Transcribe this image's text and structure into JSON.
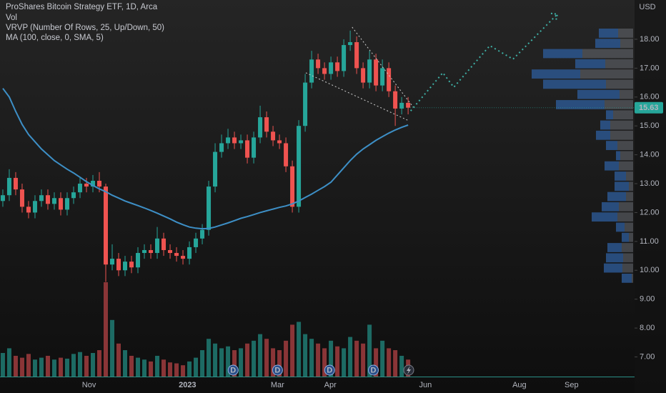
{
  "chart_data": {
    "type": "candlestick",
    "legend": [
      "ProShares Bitcoin Strategy ETF, 1D, Arca",
      "Vol",
      "VRVP (Number Of Rows, 25, Up/Down, 50)",
      "MA (100, close, 0, SMA, 5)"
    ],
    "currency": "USD",
    "up_color": "#26a69a",
    "down_color": "#ef5350",
    "volume_up_color": "#1d6b64",
    "volume_down_color": "#8a3537",
    "ma_color": "#3d8fc6",
    "forecast_color": "#3fb0a6",
    "grid": false,
    "xlim": [
      -0.44,
      98.2
    ],
    "ylim": [
      6.32,
      19.36
    ],
    "vlim": [
      0,
      100
    ],
    "xticks": [
      {
        "value": 13.4,
        "label": "Nov"
      },
      {
        "value": 28.7,
        "label": "2023"
      },
      {
        "value": 42.7,
        "label": "Mar"
      },
      {
        "value": 50.9,
        "label": "Apr"
      },
      {
        "value": 65.7,
        "label": "Jun"
      },
      {
        "value": 80.3,
        "label": "Aug"
      },
      {
        "value": 88.4,
        "label": "Sep"
      }
    ],
    "yticks": [
      {
        "value": 18,
        "label": "18.00"
      },
      {
        "value": 17,
        "label": "17.00"
      },
      {
        "value": 16,
        "label": "16.00"
      },
      {
        "value": 15,
        "label": "15.00"
      },
      {
        "value": 14,
        "label": "14.00"
      },
      {
        "value": 13,
        "label": "13.00"
      },
      {
        "value": 12,
        "label": "12.00"
      },
      {
        "value": 11,
        "label": "11.00"
      },
      {
        "value": 10,
        "label": "10.00"
      },
      {
        "value": 9,
        "label": "9.00"
      },
      {
        "value": 8,
        "label": "8.00"
      },
      {
        "value": 7,
        "label": "7.00"
      }
    ],
    "last_label": "15.63",
    "open": [
      12.4,
      12.6,
      13.2,
      12.8,
      12.2,
      12.0,
      12.4,
      12.6,
      12.3,
      12.5,
      12.1,
      12.5,
      12.7,
      13.0,
      12.9,
      13.1,
      12.9,
      10.2,
      10.4,
      10.0,
      10.3,
      10.1,
      10.6,
      10.7,
      10.6,
      11.1,
      10.7,
      10.6,
      10.5,
      10.4,
      10.8,
      11.1,
      11.4,
      12.9,
      14.1,
      14.4,
      14.6,
      14.4,
      14.5,
      13.9,
      14.6,
      15.3,
      14.8,
      14.5,
      14.4,
      13.6,
      12.2,
      15.0,
      16.5,
      17.3,
      17.0,
      16.8,
      17.2,
      16.9,
      17.8,
      17.9,
      17.0,
      16.5,
      17.3,
      16.4,
      17.0,
      16.2,
      15.6,
      15.8
    ],
    "high": [
      12.8,
      13.5,
      13.4,
      13.0,
      12.4,
      12.6,
      12.8,
      12.8,
      12.7,
      12.7,
      12.7,
      12.9,
      13.2,
      13.2,
      13.3,
      13.4,
      13.0,
      10.9,
      10.6,
      10.5,
      10.5,
      10.8,
      10.9,
      10.9,
      11.5,
      11.3,
      10.9,
      10.8,
      10.7,
      11.0,
      11.3,
      11.6,
      13.1,
      14.4,
      14.7,
      14.9,
      14.8,
      14.7,
      14.7,
      14.8,
      15.7,
      15.5,
      15.0,
      14.7,
      14.6,
      13.8,
      15.2,
      16.8,
      17.6,
      17.5,
      17.2,
      17.4,
      17.4,
      18.0,
      18.3,
      18.1,
      17.2,
      17.6,
      17.5,
      17.3,
      17.2,
      16.4,
      16.0,
      16.0
    ],
    "low": [
      12.2,
      12.4,
      12.6,
      12.0,
      11.8,
      11.8,
      12.2,
      12.1,
      12.1,
      11.9,
      11.9,
      12.3,
      12.5,
      12.7,
      12.7,
      12.7,
      9.6,
      10.0,
      9.8,
      9.8,
      9.9,
      9.9,
      10.4,
      10.4,
      10.4,
      10.5,
      10.4,
      10.3,
      10.2,
      10.2,
      10.6,
      10.9,
      11.2,
      12.7,
      13.9,
      14.2,
      14.2,
      14.2,
      13.7,
      13.7,
      14.4,
      14.6,
      14.3,
      14.2,
      13.4,
      12.0,
      12.0,
      14.8,
      16.3,
      16.8,
      16.6,
      16.6,
      16.7,
      16.7,
      17.6,
      16.8,
      16.3,
      16.3,
      16.2,
      16.2,
      16.0,
      15.0,
      15.4,
      15.4
    ],
    "close": [
      12.6,
      13.2,
      12.8,
      12.2,
      12.0,
      12.4,
      12.6,
      12.3,
      12.5,
      12.1,
      12.5,
      12.7,
      13.0,
      12.9,
      13.1,
      12.9,
      10.2,
      10.4,
      10.0,
      10.3,
      10.1,
      10.6,
      10.7,
      10.6,
      11.1,
      10.7,
      10.6,
      10.5,
      10.4,
      10.8,
      11.1,
      11.4,
      12.9,
      14.1,
      14.4,
      14.6,
      14.4,
      14.5,
      13.9,
      14.6,
      15.3,
      14.8,
      14.5,
      14.4,
      13.6,
      12.2,
      15.0,
      16.5,
      17.3,
      17.0,
      16.8,
      17.2,
      16.9,
      17.8,
      17.9,
      17.0,
      16.5,
      17.3,
      16.4,
      17.0,
      16.2,
      15.6,
      15.8,
      15.63
    ],
    "volume": [
      25,
      30,
      22,
      20,
      24,
      18,
      20,
      22,
      18,
      20,
      19,
      24,
      26,
      22,
      25,
      28,
      100,
      60,
      35,
      28,
      22,
      20,
      18,
      16,
      22,
      18,
      15,
      14,
      12,
      16,
      20,
      28,
      40,
      35,
      30,
      32,
      28,
      30,
      35,
      38,
      45,
      40,
      30,
      28,
      38,
      55,
      58,
      45,
      40,
      35,
      30,
      38,
      32,
      30,
      42,
      38,
      35,
      55,
      30,
      38,
      30,
      28,
      22,
      18
    ],
    "ma": [
      16.3,
      16.0,
      15.5,
      15.05,
      14.7,
      14.45,
      14.2,
      14.0,
      13.8,
      13.65,
      13.5,
      13.37,
      13.22,
      13.07,
      12.94,
      12.82,
      12.72,
      12.6,
      12.5,
      12.4,
      12.32,
      12.24,
      12.16,
      12.07,
      11.98,
      11.88,
      11.78,
      11.67,
      11.58,
      11.5,
      11.46,
      11.44,
      11.45,
      11.5,
      11.57,
      11.64,
      11.72,
      11.8,
      11.86,
      11.93,
      12.0,
      12.06,
      12.12,
      12.18,
      12.23,
      12.3,
      12.4,
      12.52,
      12.64,
      12.77,
      12.9,
      13.05,
      13.3,
      13.55,
      13.8,
      14.02,
      14.2,
      14.35,
      14.5,
      14.63,
      14.75,
      14.86,
      14.95,
      15.03
    ],
    "forecast": {
      "x": [
        63.4,
        68.4,
        70.1,
        75.7,
        79.3,
        86.2
      ],
      "values": [
        15.52,
        16.84,
        16.34,
        17.78,
        17.31,
        18.87
      ]
    },
    "trendlines": [
      {
        "x": [
          54.3,
          63.8
        ],
        "values": [
          18.42,
          15.65
        ]
      },
      {
        "x": [
          47.1,
          62.9
        ],
        "values": [
          16.84,
          15.2
        ]
      }
    ],
    "events": [
      {
        "x": 35.8,
        "label": "D"
      },
      {
        "x": 42.7,
        "label": "D"
      },
      {
        "x": 50.8,
        "label": "D"
      },
      {
        "x": 57.6,
        "label": "D"
      }
    ],
    "profile": {
      "top": 18.37,
      "bottom": 9.53,
      "lim": [
        0,
        150
      ],
      "up_color": "#2d5a96",
      "down_color": "#6a6d75",
      "up": [
        27,
        35,
        55,
        42,
        68,
        88,
        59,
        68,
        10,
        14,
        20,
        16,
        6,
        20,
        16,
        20,
        26,
        24,
        36,
        12,
        10,
        20,
        24,
        26,
        14
      ],
      "down": [
        21,
        18,
        71,
        39,
        74,
        38,
        19,
        40,
        28,
        32,
        32,
        22,
        18,
        20,
        10,
        6,
        10,
        20,
        22,
        12,
        6,
        16,
        14,
        15,
        2
      ]
    }
  }
}
